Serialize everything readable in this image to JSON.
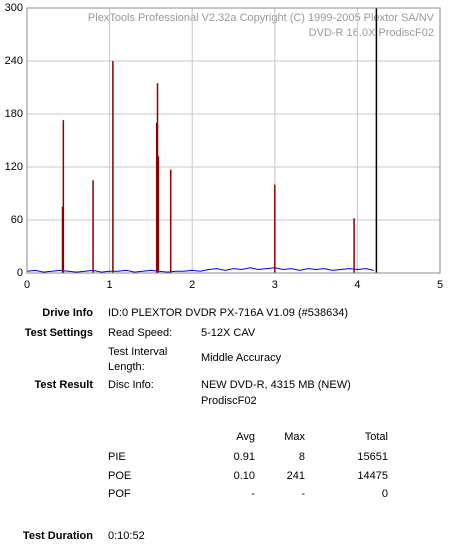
{
  "chart_data": {
    "type": "spike-line",
    "watermark": [
      "PlexTools Professional V2.32a Copyright (C) 1999-2005 Plextor SA/NV",
      "DVD-R   16.0X   ProdiscF02"
    ],
    "xlim": [
      0,
      5
    ],
    "xticks": [
      0,
      1,
      2,
      3,
      4,
      5
    ],
    "ylim": [
      0,
      300
    ],
    "yticks": [
      0,
      60,
      120,
      180,
      240,
      300
    ],
    "grid": true,
    "end_marker": 4.23,
    "end_marker_color": "#000000",
    "series": [
      {
        "style": "line",
        "color": "#0000ff",
        "x": [
          0,
          0.1,
          0.2,
          0.3,
          0.4,
          0.5,
          0.6,
          0.7,
          0.8,
          0.9,
          1.0,
          1.1,
          1.2,
          1.3,
          1.4,
          1.5,
          1.6,
          1.7,
          1.8,
          1.9,
          2.0,
          2.1,
          2.2,
          2.3,
          2.4,
          2.5,
          2.6,
          2.7,
          2.8,
          2.9,
          3.0,
          3.1,
          3.2,
          3.3,
          3.4,
          3.5,
          3.6,
          3.7,
          3.8,
          3.9,
          4.0,
          4.1,
          4.2
        ],
        "values": [
          2,
          3,
          1,
          2,
          3,
          2,
          1,
          2,
          3,
          1,
          2,
          2,
          3,
          1,
          2,
          3,
          2,
          1,
          2,
          2,
          3,
          2,
          4,
          5,
          3,
          5,
          4,
          6,
          4,
          5,
          6,
          4,
          5,
          3,
          5,
          4,
          5,
          3,
          4,
          5,
          4,
          5,
          3
        ]
      },
      {
        "style": "spike",
        "color": "#8b0000",
        "x": [
          0.43,
          0.44,
          0.8,
          1.04,
          1.57,
          1.58,
          1.59,
          1.74,
          3.0,
          3.96
        ],
        "values": [
          75,
          173,
          105,
          240,
          170,
          215,
          132,
          117,
          100,
          62
        ]
      }
    ]
  },
  "report": {
    "drive_info": {
      "label": "Drive Info",
      "value": "ID:0 PLEXTOR DVDR PX-716A V1.09 (#538634)"
    },
    "test_settings": {
      "label": "Test Settings",
      "read_speed": {
        "label": "Read Speed:",
        "value": "5-12X CAV"
      },
      "interval": {
        "label": [
          "Test Interval",
          "Length:"
        ],
        "value": "Middle Accuracy"
      }
    },
    "test_result": {
      "label": "Test Result",
      "disc_info": {
        "label": "Disc Info:",
        "value": [
          "NEW DVD-R, 4315 MB (NEW)",
          "ProdiscF02"
        ]
      }
    },
    "table": {
      "headers": [
        "Avg",
        "Max",
        "Total"
      ],
      "rows": [
        [
          "PIE",
          "0.91",
          "8",
          "15651"
        ],
        [
          "POE",
          "0.10",
          "241",
          "14475"
        ],
        [
          "POF",
          "-",
          "-",
          "0"
        ]
      ]
    },
    "test_duration": {
      "label": "Test Duration",
      "value": "0:10:52"
    }
  }
}
